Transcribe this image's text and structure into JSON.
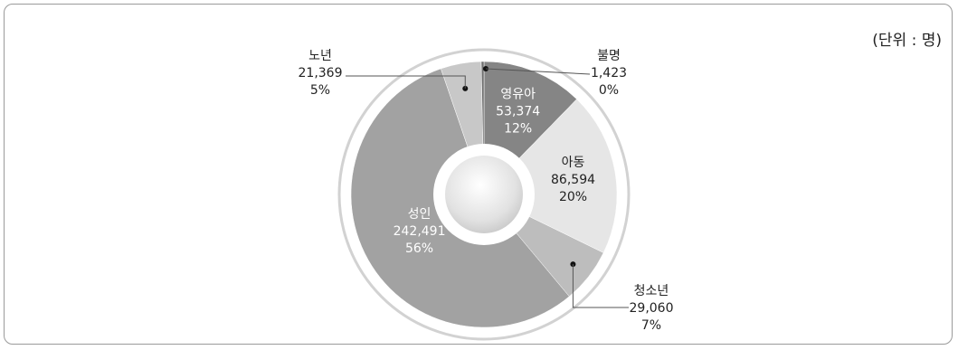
{
  "unit_label": "(단위 : 명)",
  "chart_data": {
    "type": "pie",
    "title": "",
    "unit": "(단위 : 명)",
    "slices": [
      {
        "label": "영유아",
        "value": 53374,
        "value_text": "53,374",
        "percent_text": "12%",
        "color": "#858585",
        "label_position": "inside",
        "text_color": "#ffffff"
      },
      {
        "label": "아동",
        "value": 86594,
        "value_text": "86,594",
        "percent_text": "20%",
        "color": "#e6e6e6",
        "label_position": "inside",
        "text_color": "#222222"
      },
      {
        "label": "청소년",
        "value": 29060,
        "value_text": "29,060",
        "percent_text": "7%",
        "color": "#bdbdbd",
        "label_position": "outside-bottom-right",
        "text_color": "#222222"
      },
      {
        "label": "성인",
        "value": 242491,
        "value_text": "242,491",
        "percent_text": "56%",
        "color": "#a2a2a2",
        "label_position": "inside",
        "text_color": "#ffffff"
      },
      {
        "label": "노년",
        "value": 21369,
        "value_text": "21,369",
        "percent_text": "5%",
        "color": "#c8c8c8",
        "label_position": "outside-top-left",
        "text_color": "#222222"
      },
      {
        "label": "불명",
        "value": 1423,
        "value_text": "1,423",
        "percent_text": "0%",
        "color": "#6e6e6e",
        "label_position": "outside-top-right",
        "text_color": "#222222"
      }
    ]
  }
}
